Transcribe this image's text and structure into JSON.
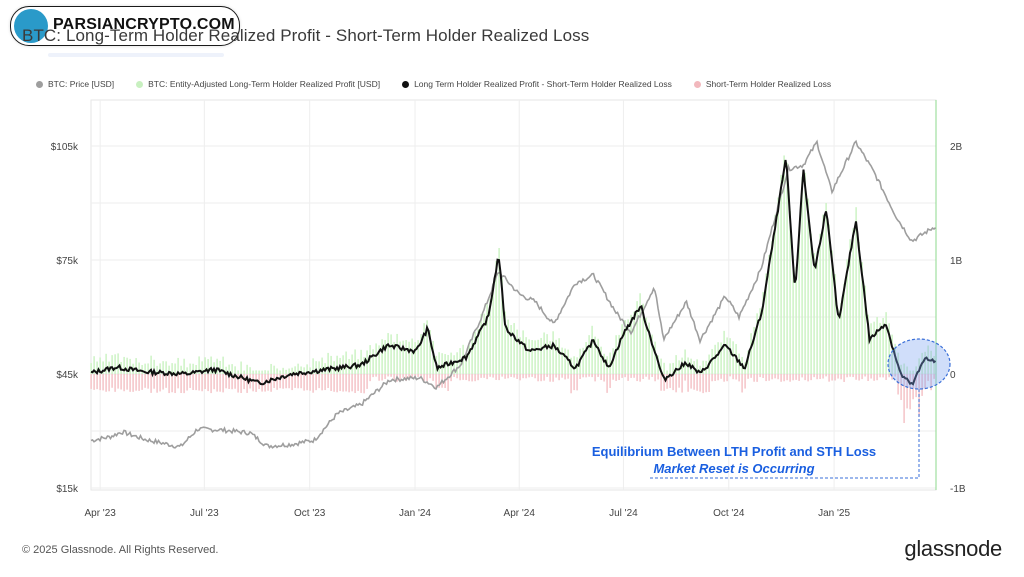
{
  "watermark": {
    "text": "PARSIANCRYPTO.COM"
  },
  "footer": {
    "copyright": "© 2025 Glassnode. All Rights Reserved.",
    "brand": "glassnode"
  },
  "chart_data": {
    "type": "line",
    "title": "BTC: Long-Term Holder Realized Profit - Short-Term Holder Realized Loss",
    "legend": [
      {
        "name": "BTC: Price [USD]",
        "color": "#9e9e9e"
      },
      {
        "name": "BTC: Entity-Adjusted Long-Term Holder Realized Profit [USD]",
        "color": "#c8f0c0"
      },
      {
        "name": "Long Term Holder Realized Profit - Short-Term Holder Realized Loss",
        "color": "#111111"
      },
      {
        "name": "Short-Term Holder Realized Loss",
        "color": "#f2b8bd"
      }
    ],
    "legend_placement": "top",
    "x_range": [
      "2023-03-24",
      "2025-03-31"
    ],
    "x_ticks": [
      "Apr '23",
      "Jul '23",
      "Oct '23",
      "Jan '24",
      "Apr '24",
      "Jul '24",
      "Oct '24",
      "Jan '25"
    ],
    "y_left": {
      "ticks": [
        "$15k",
        "$45k",
        "$75k",
        "$105k"
      ]
    },
    "y_right": {
      "range": [
        -1,
        2
      ],
      "ticks": [
        "-1B",
        "0",
        "1B",
        "2B"
      ],
      "unit": "B"
    },
    "grid": true,
    "series": [
      {
        "name": "BTC: Price [USD]",
        "axis": "left",
        "points": [
          [
            "2023-03-24",
            27500
          ],
          [
            "2023-04-10",
            28500
          ],
          [
            "2023-04-20",
            29800
          ],
          [
            "2023-05-10",
            27800
          ],
          [
            "2023-06-10",
            25800
          ],
          [
            "2023-06-25",
            30500
          ],
          [
            "2023-07-15",
            30300
          ],
          [
            "2023-08-10",
            29500
          ],
          [
            "2023-08-25",
            26000
          ],
          [
            "2023-09-15",
            26500
          ],
          [
            "2023-10-05",
            27600
          ],
          [
            "2023-10-25",
            34500
          ],
          [
            "2023-11-15",
            37000
          ],
          [
            "2023-12-10",
            43500
          ],
          [
            "2024-01-05",
            44000
          ],
          [
            "2024-01-20",
            41500
          ],
          [
            "2024-02-10",
            47500
          ],
          [
            "2024-02-28",
            60000
          ],
          [
            "2024-03-14",
            72000
          ],
          [
            "2024-04-01",
            66000
          ],
          [
            "2024-04-15",
            64000
          ],
          [
            "2024-05-01",
            58000
          ],
          [
            "2024-05-20",
            69000
          ],
          [
            "2024-06-05",
            71000
          ],
          [
            "2024-06-25",
            61000
          ],
          [
            "2024-07-08",
            56000
          ],
          [
            "2024-07-28",
            68000
          ],
          [
            "2024-08-05",
            54000
          ],
          [
            "2024-08-25",
            64000
          ],
          [
            "2024-09-06",
            53900
          ],
          [
            "2024-09-28",
            65500
          ],
          [
            "2024-10-10",
            60000
          ],
          [
            "2024-10-29",
            72500
          ],
          [
            "2024-11-12",
            88000
          ],
          [
            "2024-11-22",
            99000
          ],
          [
            "2024-12-05",
            100000
          ],
          [
            "2024-12-17",
            106000
          ],
          [
            "2024-12-30",
            93000
          ],
          [
            "2025-01-20",
            106000
          ],
          [
            "2025-02-05",
            98000
          ],
          [
            "2025-02-25",
            86000
          ],
          [
            "2025-03-10",
            80000
          ],
          [
            "2025-03-31",
            84000
          ]
        ]
      },
      {
        "name": "Long Term Holder Realized Profit - Short-Term Holder Realized Loss",
        "axis": "right",
        "unit": "B",
        "points": [
          [
            "2023-03-24",
            0.01
          ],
          [
            "2023-04-15",
            0.06
          ],
          [
            "2023-05-10",
            0.02
          ],
          [
            "2023-06-15",
            0.0
          ],
          [
            "2023-07-10",
            0.04
          ],
          [
            "2023-08-18",
            -0.08
          ],
          [
            "2023-09-15",
            0.0
          ],
          [
            "2023-10-24",
            0.05
          ],
          [
            "2023-11-15",
            0.08
          ],
          [
            "2023-12-08",
            0.25
          ],
          [
            "2024-01-02",
            0.2
          ],
          [
            "2024-01-12",
            0.4
          ],
          [
            "2024-01-20",
            0.05
          ],
          [
            "2024-02-15",
            0.15
          ],
          [
            "2024-03-05",
            0.5
          ],
          [
            "2024-03-14",
            1.05
          ],
          [
            "2024-03-20",
            0.4
          ],
          [
            "2024-04-10",
            0.2
          ],
          [
            "2024-05-01",
            0.25
          ],
          [
            "2024-05-20",
            0.05
          ],
          [
            "2024-06-05",
            0.3
          ],
          [
            "2024-06-18",
            0.05
          ],
          [
            "2024-07-01",
            0.35
          ],
          [
            "2024-07-16",
            0.6
          ],
          [
            "2024-08-05",
            -0.05
          ],
          [
            "2024-08-25",
            0.1
          ],
          [
            "2024-09-06",
            0.0
          ],
          [
            "2024-09-28",
            0.25
          ],
          [
            "2024-10-15",
            0.05
          ],
          [
            "2024-10-30",
            0.55
          ],
          [
            "2024-11-10",
            1.25
          ],
          [
            "2024-11-20",
            1.9
          ],
          [
            "2024-11-28",
            0.7
          ],
          [
            "2024-12-05",
            1.8
          ],
          [
            "2024-12-15",
            0.9
          ],
          [
            "2024-12-25",
            1.45
          ],
          [
            "2025-01-05",
            0.45
          ],
          [
            "2025-01-20",
            1.35
          ],
          [
            "2025-02-01",
            0.3
          ],
          [
            "2025-02-15",
            0.45
          ],
          [
            "2025-02-28",
            0.0
          ],
          [
            "2025-03-10",
            -0.1
          ],
          [
            "2025-03-22",
            0.15
          ],
          [
            "2025-03-31",
            0.1
          ]
        ]
      }
    ],
    "annotations": [
      {
        "text": "Equilibrium Between LTH Profit and STH Loss",
        "color": "#1a5fe0"
      },
      {
        "text": "Market Reset is Occurring",
        "color": "#1a5fe0"
      }
    ]
  }
}
